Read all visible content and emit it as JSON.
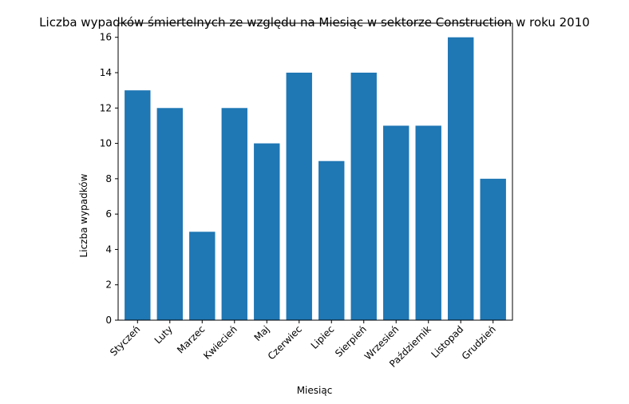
{
  "chart_data": {
    "type": "bar",
    "title": "Liczba wypadków śmiertelnych ze względu na Miesiąc w sektorze Construction w roku 2010",
    "xlabel": "Miesiąc",
    "ylabel": "Liczba wypadków",
    "categories": [
      "Styczeń",
      "Luty",
      "Marzec",
      "Kwiecień",
      "Maj",
      "Czerwiec",
      "Lipiec",
      "Sierpień",
      "Wrzesień",
      "Październik",
      "Listopad",
      "Grudzień"
    ],
    "values": [
      13,
      12,
      5,
      12,
      10,
      14,
      9,
      14,
      11,
      11,
      16,
      8
    ],
    "ylim": [
      0,
      16.8
    ],
    "yticks": [
      0,
      2,
      4,
      6,
      8,
      10,
      12,
      14,
      16
    ],
    "bar_color": "#1f77b4",
    "grid": false,
    "legend": "none"
  }
}
